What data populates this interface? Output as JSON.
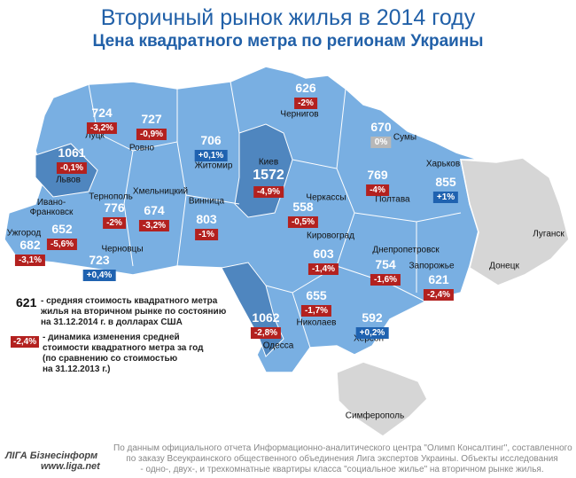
{
  "header": {
    "title": "Вторичный рынок жилья в 2014 году",
    "subtitle": "Цена квадратного метра по регионам Украины"
  },
  "regions": [
    {
      "name": "Ужгород",
      "price": "682",
      "change": "-3,1%"
    },
    {
      "name": "Луцк",
      "price": "724",
      "change": "-3,2%"
    },
    {
      "name": "Ровно",
      "price": "727",
      "change": "-0,9%"
    },
    {
      "name": "Львов",
      "price": "1061",
      "change": "-0,1%"
    },
    {
      "name": "Тернополь",
      "price": "776",
      "change": "-2%"
    },
    {
      "name": "Ивано-Франковск",
      "price": "652",
      "change": "-5,6%"
    },
    {
      "name": "Хмельницкий",
      "price": "674",
      "change": "-3,2%"
    },
    {
      "name": "Черновцы",
      "price": "723",
      "change": "+0,4%"
    },
    {
      "name": "Житомир",
      "price": "706",
      "change": "+0,1%"
    },
    {
      "name": "Винница",
      "price": "803",
      "change": "-1%"
    },
    {
      "name": "Киев",
      "price": "1572",
      "change": "-4,9%"
    },
    {
      "name": "Чернигов",
      "price": "626",
      "change": "-2%"
    },
    {
      "name": "Сумы",
      "price": "670",
      "change": "0%"
    },
    {
      "name": "Харьков",
      "price": "855",
      "change": "+1%"
    },
    {
      "name": "Полтава",
      "price": "769",
      "change": "-4%"
    },
    {
      "name": "Черкассы",
      "price": "558",
      "change": "-0,5%"
    },
    {
      "name": "Кировоград",
      "price": "603",
      "change": "-1,4%"
    },
    {
      "name": "Днепропетровск",
      "price": "754",
      "change": "-1,6%"
    },
    {
      "name": "Запорожье",
      "price": "621",
      "change": "-2,4%"
    },
    {
      "name": "Николаев",
      "price": "655",
      "change": "-1,7%"
    },
    {
      "name": "Одесса",
      "price": "1062",
      "change": "-2,8%"
    },
    {
      "name": "Херсон",
      "price": "592",
      "change": "+0,2%"
    },
    {
      "name": "Луганск"
    },
    {
      "name": "Донецк"
    },
    {
      "name": "Симферополь"
    }
  ],
  "legend": {
    "price": {
      "key": "621",
      "lines": [
        "- средняя стоимость квадратного метра",
        "жилья на вторичном рынке по состоянию",
        "на 31.12.2014 г. в долларах США"
      ]
    },
    "change": {
      "key": "-2,4%",
      "lines": [
        "- динамика изменения средней",
        "стоимости квадратного метра за год",
        "(по сравнению со стоимостью",
        "на 31.12.2013 г.)"
      ]
    }
  },
  "footer": {
    "logo": "ЛIГА Бізнесінформ",
    "url": "www.liga.net",
    "source": [
      "По данным официального отчета Информационно-аналитического центра \"Олимп Консалтинг\", составленного",
      "по заказу Всеукраинского общественного объединения Лига экспертов Украины. Объекты исследования",
      "- одно-, двух-, и трехкомнатные квартиры класса \"социальное жилье\" на вторичном рынке жилья."
    ]
  }
}
